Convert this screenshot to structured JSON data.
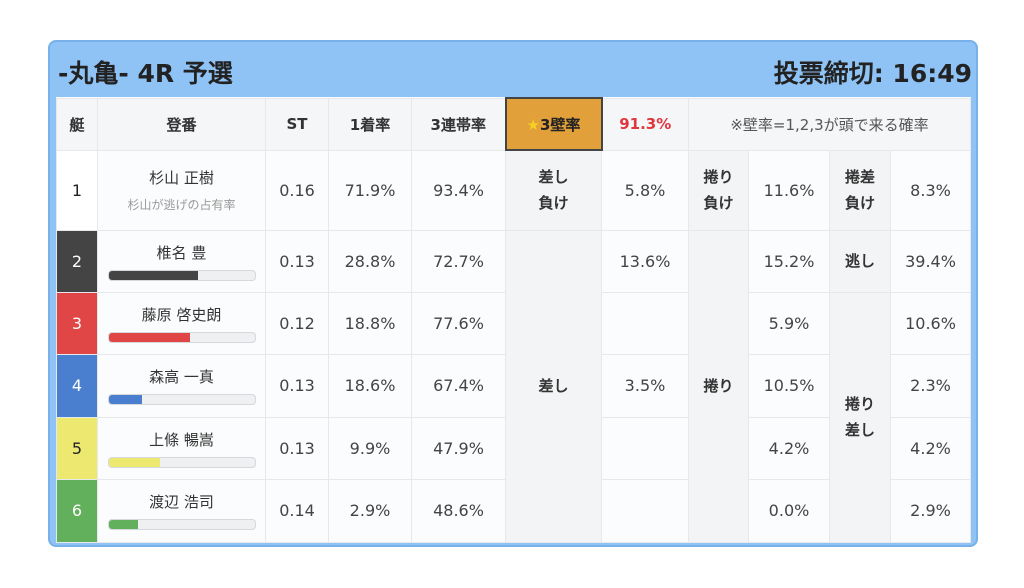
{
  "header": {
    "title": "-丸亀- 4R 予選",
    "deadline": "投票締切: 16:49"
  },
  "columns": {
    "boat": "艇",
    "name": "登番",
    "st": "ST",
    "win": "1着率",
    "top3": "3連帯率",
    "kabe_label": "★3壁率",
    "kabe_star": "★",
    "kabe_text": "3壁率",
    "kabe_value": "91.3%",
    "note": "※壁率=1,2,3が頭で来る確率"
  },
  "labels": {
    "sashi_make": [
      "差し",
      "負け"
    ],
    "makuri_make": [
      "捲り",
      "負け"
    ],
    "makurisashi_make": [
      "捲差",
      "負け"
    ],
    "sashi": "差し",
    "makuri": "捲り",
    "nige": "逃し",
    "makurisashi": [
      "捲り",
      "差し"
    ]
  },
  "rows": [
    {
      "boat": "1",
      "color": "#ffffff",
      "name": "杉山 正樹",
      "sub": "杉山が逃げの占有率",
      "st": "0.16",
      "win": "71.9%",
      "top3": "93.4%",
      "c1": "5.8%",
      "c2": "11.6%",
      "c3": "8.3%"
    },
    {
      "boat": "2",
      "color": "#444444",
      "name": "椎名 豊",
      "bar": 0.61,
      "st": "0.13",
      "win": "28.8%",
      "top3": "72.7%",
      "c1": "13.6%",
      "c2": "15.2%",
      "c3": "39.4%"
    },
    {
      "boat": "3",
      "color": "#e04646",
      "name": "藤原 啓史朗",
      "bar": 0.56,
      "st": "0.12",
      "win": "18.8%",
      "top3": "77.6%",
      "c1": "",
      "c2": "5.9%",
      "c3": "10.6%"
    },
    {
      "boat": "4",
      "color": "#4a7fd0",
      "name": "森高 一真",
      "bar": 0.23,
      "st": "0.13",
      "win": "18.6%",
      "top3": "67.4%",
      "c1": "3.5%",
      "c2": "10.5%",
      "c3": "2.3%"
    },
    {
      "boat": "5",
      "color": "#ece870",
      "name": "上條 暢嵩",
      "bar": 0.35,
      "st": "0.13",
      "win": "9.9%",
      "top3": "47.9%",
      "c1": "",
      "c2": "4.2%",
      "c3": "4.2%"
    },
    {
      "boat": "6",
      "color": "#62b05c",
      "name": "渡辺 浩司",
      "bar": 0.2,
      "st": "0.14",
      "win": "2.9%",
      "top3": "48.6%",
      "c1": "",
      "c2": "0.0%",
      "c3": "2.9%"
    }
  ]
}
